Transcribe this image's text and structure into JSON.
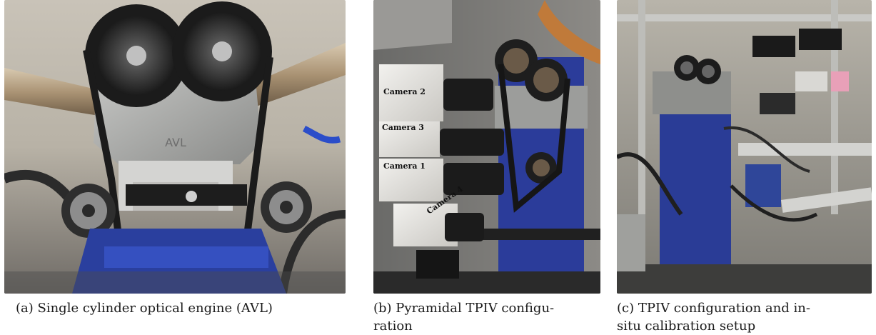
{
  "figure": {
    "panels": [
      {
        "id": "a",
        "caption": "(a) Single cylinder optical engine (AVL)",
        "photo_text": [
          "AVL"
        ],
        "icon": "engine-photo-icon"
      },
      {
        "id": "b",
        "caption": "(b) Pyramidal TPIV configu-ration",
        "caption_lines": [
          "(b) Pyramidal TPIV configu-",
          "ration"
        ],
        "photo_text": [
          "Camera 2",
          "Camera 3",
          "Camera 1",
          "Camera 4"
        ],
        "icon": "camera-setup-photo-icon"
      },
      {
        "id": "c",
        "caption": "(c) TPIV configuration and in-situ calibration setup",
        "caption_lines": [
          "(c) TPIV configuration and in-",
          "situ calibration setup"
        ],
        "icon": "calibration-setup-photo-icon"
      }
    ],
    "colors": {
      "engine_blue": "#2a3f9e",
      "belt_dark": "#1b1b1b",
      "aluminium": "#a9aaa8",
      "camera_body": "#e8e6e2"
    }
  }
}
